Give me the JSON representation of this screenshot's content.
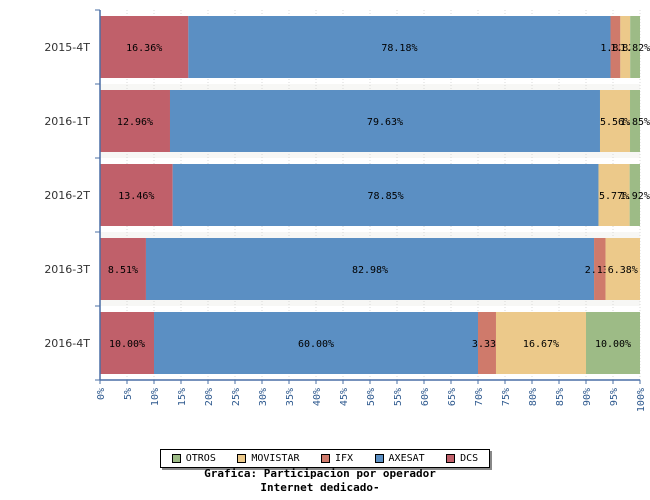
{
  "chart_data": {
    "type": "bar",
    "orientation": "horizontal",
    "stacked": true,
    "percent": true,
    "categories": [
      "2015-4T",
      "2016-1T",
      "2016-2T",
      "2016-3T",
      "2016-4T"
    ],
    "series": [
      {
        "name": "DCS",
        "color": "#c0606a",
        "values": [
          16.36,
          12.96,
          13.46,
          8.51,
          10.0
        ],
        "labels": [
          "16.36%",
          "12.96%",
          "13.46%",
          "8.51%",
          "10.00%"
        ]
      },
      {
        "name": "AXESAT",
        "color": "#5b8fc3",
        "values": [
          78.18,
          79.63,
          78.85,
          82.98,
          60.0
        ],
        "labels": [
          "78.18%",
          "79.63%",
          "78.85%",
          "82.98%",
          "60.00%"
        ]
      },
      {
        "name": "IFX",
        "color": "#cf7a6b",
        "values": [
          1.82,
          0.0,
          0.0,
          2.13,
          3.33
        ],
        "labels": [
          "1.82%",
          "",
          "",
          "2.13%",
          "3.33%"
        ]
      },
      {
        "name": "MOVISTAR",
        "color": "#ecc98a",
        "values": [
          1.82,
          5.56,
          5.77,
          6.38,
          16.67
        ],
        "labels": [
          "1.82%",
          "5.56%",
          "5.77%",
          "6.38%",
          "16.67%"
        ]
      },
      {
        "name": "OTROS",
        "color": "#9dbb86",
        "values": [
          1.82,
          1.85,
          1.92,
          0.0,
          10.0
        ],
        "labels": [
          "1.82%",
          "1.85%",
          "1.92%",
          "",
          "10.00%"
        ]
      }
    ],
    "xlim": [
      0,
      100
    ],
    "xticks": [
      "0%",
      "5%",
      "10%",
      "15%",
      "20%",
      "25%",
      "30%",
      "35%",
      "40%",
      "45%",
      "50%",
      "55%",
      "60%",
      "65%",
      "70%",
      "75%",
      "80%",
      "85%",
      "90%",
      "95%",
      "100%"
    ],
    "grid": true,
    "legend_position": "bottom",
    "legend": [
      {
        "name": "OTROS",
        "color": "#9dbb86"
      },
      {
        "name": "MOVISTAR",
        "color": "#ecc98a"
      },
      {
        "name": "IFX",
        "color": "#cf7a6b"
      },
      {
        "name": "AXESAT",
        "color": "#5b8fc3"
      },
      {
        "name": "DCS",
        "color": "#c0606a"
      }
    ],
    "title_line1": "Grafica: Participacion por operador",
    "title_line2": "Internet dedicado-"
  }
}
